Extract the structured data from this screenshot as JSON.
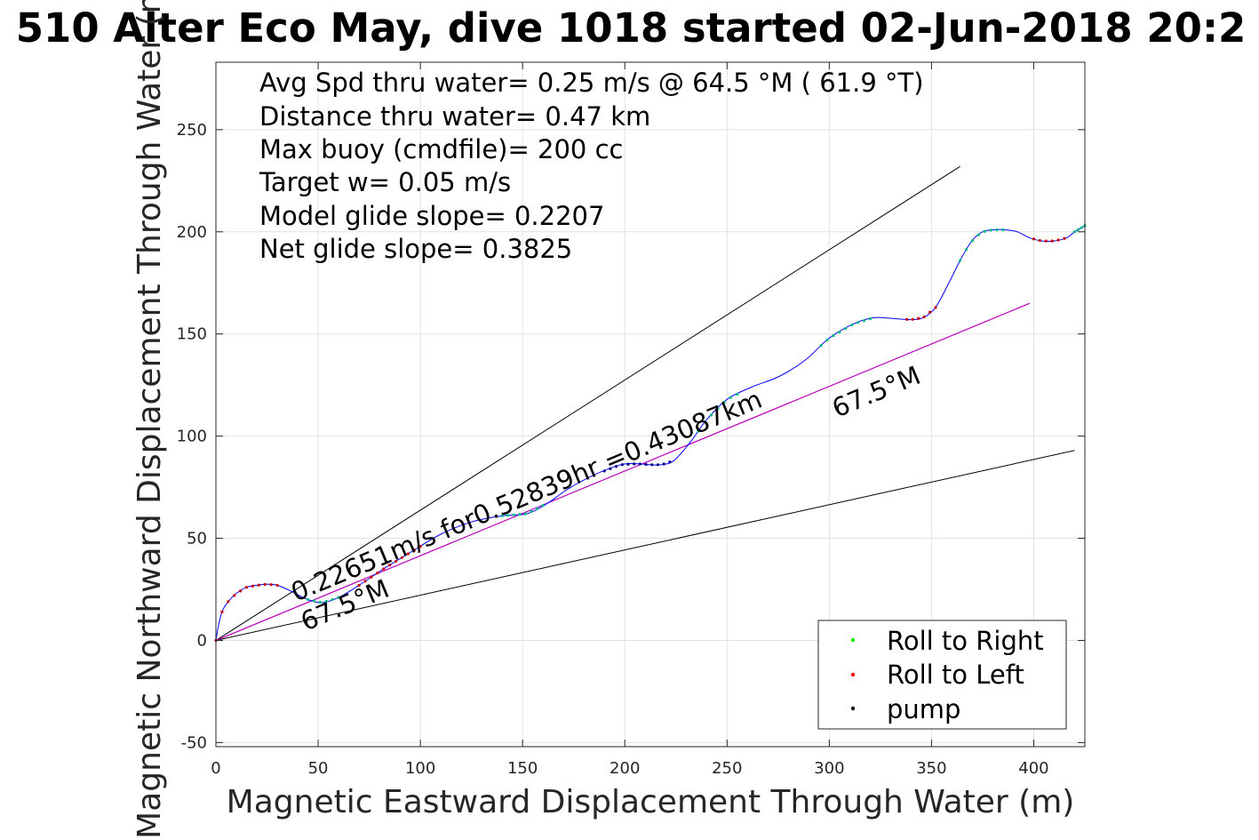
{
  "title": "510 Alter Eco May, dive 1018 started 02-Jun-2018 20:2",
  "chart_data": {
    "type": "line",
    "xlabel": "Magnetic Eastward Displacement Through Water (m)",
    "ylabel": "Magnetic Northward Displacement Through Water (m)",
    "xlim": [
      0,
      425
    ],
    "ylim": [
      -52,
      283
    ],
    "xticks": [
      0,
      50,
      100,
      150,
      200,
      250,
      300,
      350,
      400
    ],
    "yticks": [
      -50,
      0,
      50,
      100,
      150,
      200,
      250
    ],
    "xtick_labels": [
      "0",
      "50",
      "100",
      "150",
      "200",
      "250",
      "300",
      "350",
      "400"
    ],
    "ytick_labels": [
      "-50",
      "0",
      "50",
      "100",
      "150",
      "200",
      "250"
    ],
    "grid": true,
    "stats_lines": [
      "Avg Spd thru water=  0.25 m/s @  64.5 °M ( 61.9 °T)",
      "Distance thru water=  0.47 km",
      "Max buoy (cmdfile)= 200 cc",
      "Target w= 0.05 m/s",
      "Model glide slope= 0.2207",
      "Net glide slope= 0.3825"
    ],
    "legend": {
      "placement": "bottom-right",
      "entries": [
        {
          "label": "Roll to Right",
          "color": "#00ee00"
        },
        {
          "label": "Roll to Left",
          "color": "#ff0000"
        },
        {
          "label": "pump",
          "color": "#000000"
        }
      ]
    },
    "annotations": {
      "track_label": "0.22651m/s for0.52839hr =0.43087km",
      "heading_label_start": "67.5°M",
      "heading_label_end": "67.5°M"
    },
    "colors": {
      "track": "#0000ff",
      "heading_line": "#bb00bb",
      "bound_lines": "#000000"
    },
    "track": {
      "x": [
        0,
        1,
        3,
        6,
        10,
        15,
        20,
        25,
        30,
        37,
        45,
        52,
        60,
        70,
        82,
        95,
        110,
        125,
        140,
        152,
        162,
        172,
        185,
        198,
        206,
        212,
        218,
        224,
        232,
        240,
        250,
        262,
        275,
        288,
        300,
        312,
        322,
        332,
        340,
        346,
        352,
        358,
        364,
        368,
        371,
        375,
        380,
        386,
        392,
        398,
        404,
        410,
        416,
        420,
        425
      ],
      "y": [
        0,
        6,
        14,
        19,
        23,
        26,
        27,
        27.5,
        27,
        24,
        20,
        18.5,
        21,
        27,
        35,
        43,
        52,
        58,
        61,
        62,
        67,
        74,
        81,
        86,
        86.5,
        86,
        86,
        88,
        97,
        108,
        118,
        124,
        129,
        137,
        148,
        155,
        158,
        157.5,
        157,
        158,
        163,
        174,
        186,
        193,
        197,
        200,
        201,
        201,
        200,
        197,
        195.5,
        195.5,
        197,
        200,
        203
      ],
      "segments": [
        {
          "kind": "Roll to Left",
          "color": "#cc0000",
          "from": 0,
          "to": 30
        },
        {
          "kind": "Roll to Right",
          "color": "#00bb88",
          "from": 45,
          "to": 60
        },
        {
          "kind": "Roll to Left",
          "color": "#cc0000",
          "from": 70,
          "to": 100
        },
        {
          "kind": "Roll to Right",
          "color": "#00bb88",
          "from": 140,
          "to": 160
        },
        {
          "kind": "Roll to Left",
          "color": "#000088",
          "from": 190,
          "to": 222
        },
        {
          "kind": "Roll to Right",
          "color": "#00bb88",
          "from": 236,
          "to": 255
        },
        {
          "kind": "Roll to Right",
          "color": "#00bb88",
          "from": 296,
          "to": 320
        },
        {
          "kind": "Roll to Left",
          "color": "#cc0000",
          "from": 338,
          "to": 352
        },
        {
          "kind": "Roll to Right",
          "color": "#00bb88",
          "from": 364,
          "to": 385
        },
        {
          "kind": "Roll to Left",
          "color": "#cc0000",
          "from": 400,
          "to": 415
        },
        {
          "kind": "Roll to Right",
          "color": "#00bb88",
          "from": 420,
          "to": 425
        }
      ]
    },
    "heading_line": {
      "x": [
        0,
        398
      ],
      "y": [
        0,
        165
      ]
    },
    "bound_lines": [
      {
        "x": [
          0,
          364
        ],
        "y": [
          0,
          232
        ]
      },
      {
        "x": [
          0,
          420
        ],
        "y": [
          0,
          93
        ]
      }
    ]
  }
}
